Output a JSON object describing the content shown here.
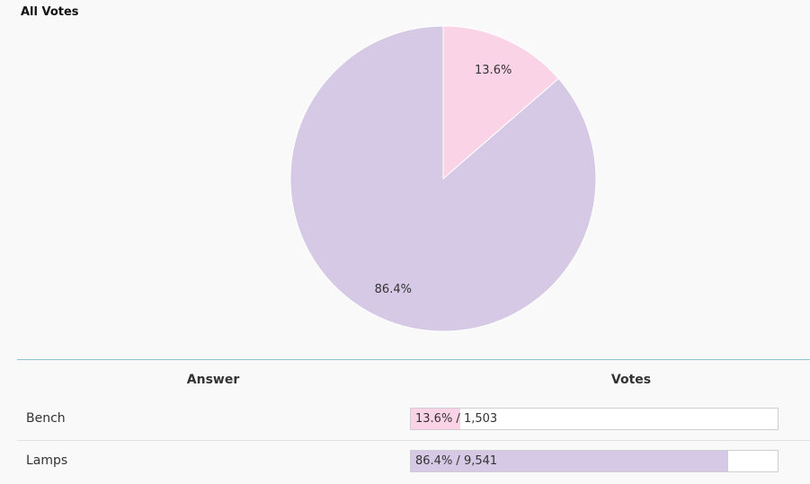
{
  "chart_data": {
    "type": "pie",
    "title": "All Votes",
    "slices": [
      {
        "name": "Bench",
        "value": 1503,
        "percent": 13.6,
        "percent_label": "13.6%",
        "color": "#fad3e6"
      },
      {
        "name": "Lamps",
        "value": 9541,
        "percent": 86.4,
        "percent_label": "86.4%",
        "color": "#d5c9e5"
      }
    ]
  },
  "table": {
    "headers": {
      "answer": "Answer",
      "votes": "Votes"
    },
    "rows": [
      {
        "answer": "Bench",
        "percent": 13.6,
        "votes_label": "13.6% / 1,503",
        "color": "#fad3e6"
      },
      {
        "answer": "Lamps",
        "percent": 86.4,
        "votes_label": "86.4% / 9,541",
        "color": "#d5c9e5"
      }
    ]
  },
  "colors": {
    "divider": "#8cc4d4"
  }
}
